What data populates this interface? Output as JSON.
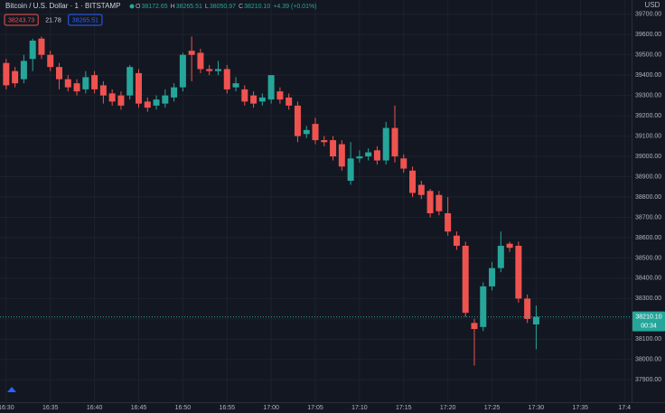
{
  "chart_data": {
    "type": "candlestick",
    "title": "Bitcoin / U.S. Dollar · 1 · BITSTAMP",
    "ohlc_legend": [
      {
        "key": "O",
        "text": "38172.65"
      },
      {
        "key": "H",
        "text": "38265.51"
      },
      {
        "key": "L",
        "text": "38050.97"
      },
      {
        "key": "C",
        "text": "38210.10"
      }
    ],
    "change": "+4.39 (+0.01%)",
    "badges": [
      {
        "text": "38243.73",
        "color": "#ef5350"
      },
      {
        "text": "21.78",
        "color": "#d1d4dc"
      },
      {
        "text": "38265.51",
        "color": "#2962ff"
      }
    ],
    "currency": "USD",
    "last_price_label": "38210.10",
    "countdown": "00:34",
    "up_color": "#26a69a",
    "down_color": "#ef5350",
    "grid": true,
    "open": [
      39460,
      39420,
      39380,
      39480,
      39580,
      39500,
      39440,
      39380,
      39360,
      39330,
      39400,
      39350,
      39310,
      39300,
      39300,
      39410,
      39270,
      39250,
      39260,
      39290,
      39340,
      39520,
      39510,
      39430,
      39420,
      39430,
      39340,
      39330,
      39300,
      39270,
      39280,
      39320,
      39290,
      39250,
      39110,
      39160,
      39080,
      39080,
      39060,
      38880,
      38990,
      39000,
      39030,
      38980,
      39140,
      38990,
      38930,
      38860,
      38830,
      38810,
      38720,
      38610,
      38560,
      38180,
      38160,
      38360,
      38450,
      38570,
      38560,
      38300,
      38172.65
    ],
    "high": [
      39480,
      39440,
      39500,
      39580,
      39590,
      39520,
      39460,
      39400,
      39380,
      39420,
      39420,
      39370,
      39330,
      39320,
      39450,
      39430,
      39290,
      39300,
      39330,
      39360,
      39510,
      39590,
      39530,
      39450,
      39470,
      39450,
      39390,
      39350,
      39320,
      39310,
      39400,
      39340,
      39310,
      39270,
      39150,
      39190,
      39100,
      39100,
      39080,
      39070,
      39030,
      39040,
      39050,
      39170,
      39250,
      39010,
      38950,
      38880,
      38840,
      38830,
      38800,
      38630,
      38580,
      38200,
      38380,
      38480,
      38630,
      38580,
      38580,
      38320,
      38265.51
    ],
    "low": [
      39330,
      39340,
      39360,
      39420,
      39480,
      39420,
      39330,
      39320,
      39300,
      39310,
      39310,
      39260,
      39250,
      39230,
      39280,
      39240,
      39220,
      39230,
      39240,
      39270,
      39320,
      39370,
      39410,
      39400,
      39400,
      39310,
      39320,
      39250,
      39240,
      39250,
      39260,
      39260,
      39230,
      39070,
      39090,
      39060,
      39050,
      38980,
      38930,
      38860,
      38970,
      38980,
      38960,
      38960,
      38970,
      38920,
      38800,
      38790,
      38700,
      38710,
      38610,
      38540,
      38210,
      37970,
      38140,
      38340,
      38430,
      38530,
      38280,
      38180,
      38050.97
    ],
    "close": [
      39350,
      39360,
      39470,
      39570,
      39500,
      39440,
      39380,
      39340,
      39320,
      39390,
      39330,
      39300,
      39270,
      39250,
      39440,
      39260,
      39240,
      39280,
      39300,
      39340,
      39500,
      39500,
      39430,
      39420,
      39430,
      39330,
      39360,
      39270,
      39260,
      39290,
      39400,
      39280,
      39250,
      39100,
      39130,
      39080,
      39070,
      39000,
      38950,
      38990,
      39000,
      39020,
      38980,
      39140,
      39000,
      38940,
      38820,
      38810,
      38720,
      38730,
      38630,
      38560,
      38230,
      38150,
      38360,
      38450,
      38560,
      38550,
      38300,
      38200,
      38210.1
    ],
    "xlim": [
      -0.7,
      70.8
    ],
    "xticks": [
      {
        "value": 0,
        "label": "16:30"
      },
      {
        "value": 5,
        "label": "16:35"
      },
      {
        "value": 10,
        "label": "16:40"
      },
      {
        "value": 15,
        "label": "16:45"
      },
      {
        "value": 20,
        "label": "16:50"
      },
      {
        "value": 25,
        "label": "16:55"
      },
      {
        "value": 30,
        "label": "17:00"
      },
      {
        "value": 35,
        "label": "17:05"
      },
      {
        "value": 40,
        "label": "17:10"
      },
      {
        "value": 45,
        "label": "17:15"
      },
      {
        "value": 50,
        "label": "17:20"
      },
      {
        "value": 55,
        "label": "17:25"
      },
      {
        "value": 60,
        "label": "17:30"
      },
      {
        "value": 65,
        "label": "17:35"
      },
      {
        "value": 70,
        "label": "17:4"
      }
    ],
    "ylim": [
      37790,
      39770
    ],
    "yticks": [
      {
        "value": 37900,
        "label": "37900.00"
      },
      {
        "value": 38000,
        "label": "38000.00"
      },
      {
        "value": 38100,
        "label": "38100.00"
      },
      {
        "value": 38200,
        "label": "38200.00"
      },
      {
        "value": 38300,
        "label": "38300.00"
      },
      {
        "value": 38400,
        "label": "38400.00"
      },
      {
        "value": 38500,
        "label": "38500.00"
      },
      {
        "value": 38600,
        "label": "38600.00"
      },
      {
        "value": 38700,
        "label": "38700.00"
      },
      {
        "value": 38800,
        "label": "38800.00"
      },
      {
        "value": 38900,
        "label": "38900.00"
      },
      {
        "value": 39000,
        "label": "39000.00"
      },
      {
        "value": 39100,
        "label": "39100.00"
      },
      {
        "value": 39200,
        "label": "39200.00"
      },
      {
        "value": 39300,
        "label": "39300.00"
      },
      {
        "value": 39400,
        "label": "39400.00"
      },
      {
        "value": 39500,
        "label": "39500.00"
      },
      {
        "value": 39600,
        "label": "39600.00"
      },
      {
        "value": 39700,
        "label": "39700.00"
      }
    ]
  }
}
